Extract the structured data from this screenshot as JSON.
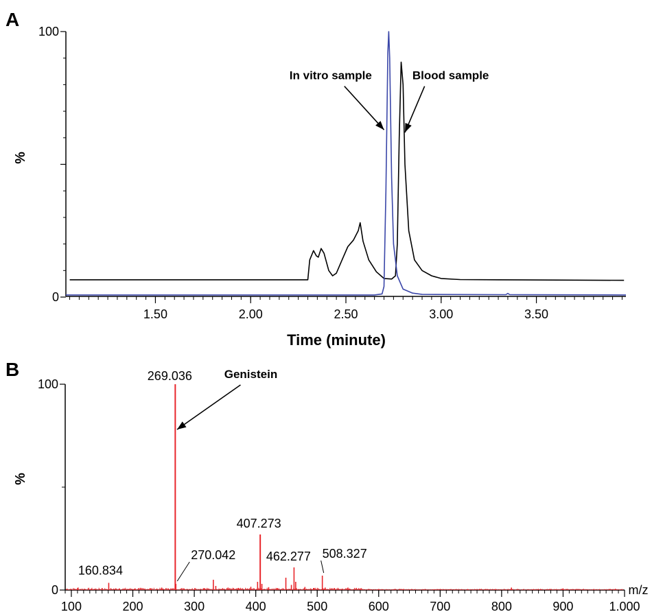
{
  "panels": {
    "a_label": "A",
    "b_label": "B"
  },
  "chart_data": [
    {
      "id": "chromatogram",
      "type": "line",
      "title": "",
      "xlabel": "Time (minute)",
      "ylabel": "%",
      "xlim": [
        1.03,
        3.97
      ],
      "ylim": [
        0,
        100
      ],
      "x_ticks": [
        1.5,
        2.0,
        2.5,
        3.0,
        3.5
      ],
      "x_tick_labels": [
        "1.50",
        "2.00",
        "2.50",
        "3.00",
        "3.50"
      ],
      "y_ticks": [
        0,
        50,
        100
      ],
      "y_tick_labels": [
        "0",
        "",
        "100"
      ],
      "grid": false,
      "legend": "none",
      "series": [
        {
          "name": "Blood sample",
          "color": "#000000",
          "points": [
            [
              1.05,
              6.5
            ],
            [
              2.3,
              6.5
            ],
            [
              2.31,
              14.0
            ],
            [
              2.33,
              17.5
            ],
            [
              2.345,
              15.5
            ],
            [
              2.355,
              15.0
            ],
            [
              2.37,
              18.3
            ],
            [
              2.385,
              16.5
            ],
            [
              2.41,
              10.0
            ],
            [
              2.43,
              8.0
            ],
            [
              2.45,
              9.0
            ],
            [
              2.48,
              14.0
            ],
            [
              2.51,
              19.0
            ],
            [
              2.54,
              21.5
            ],
            [
              2.565,
              25.0
            ],
            [
              2.575,
              28.0
            ],
            [
              2.59,
              21.0
            ],
            [
              2.62,
              14.0
            ],
            [
              2.66,
              9.5
            ],
            [
              2.7,
              7.0
            ],
            [
              2.74,
              6.8
            ],
            [
              2.76,
              8.0
            ],
            [
              2.77,
              20.0
            ],
            [
              2.78,
              60.0
            ],
            [
              2.79,
              88.5
            ],
            [
              2.8,
              80.0
            ],
            [
              2.81,
              50.0
            ],
            [
              2.83,
              25.0
            ],
            [
              2.86,
              14.0
            ],
            [
              2.9,
              10.0
            ],
            [
              2.95,
              8.0
            ],
            [
              3.0,
              7.0
            ],
            [
              3.1,
              6.6
            ],
            [
              3.3,
              6.5
            ],
            [
              3.96,
              6.3
            ]
          ]
        },
        {
          "name": "In vitro sample",
          "color": "#3a46a8",
          "points": [
            [
              1.03,
              0.8
            ],
            [
              2.65,
              0.8
            ],
            [
              2.69,
              1.2
            ],
            [
              2.7,
              4.0
            ],
            [
              2.71,
              40.0
            ],
            [
              2.72,
              92.0
            ],
            [
              2.725,
              100.0
            ],
            [
              2.73,
              90.0
            ],
            [
              2.74,
              45.0
            ],
            [
              2.75,
              20.0
            ],
            [
              2.77,
              8.0
            ],
            [
              2.8,
              3.0
            ],
            [
              2.85,
              1.5
            ],
            [
              2.9,
              1.0
            ],
            [
              3.34,
              0.9
            ],
            [
              3.35,
              1.4
            ],
            [
              3.36,
              0.9
            ],
            [
              3.97,
              0.8
            ]
          ]
        }
      ],
      "annotations": [
        {
          "text": "In vitro sample",
          "x": 2.42,
          "y": 82,
          "arrow_to": [
            2.7,
            63
          ]
        },
        {
          "text": "Blood sample",
          "x": 3.05,
          "y": 82,
          "arrow_to": [
            2.81,
            62
          ]
        }
      ]
    },
    {
      "id": "mass_spectrum",
      "type": "bar",
      "title": "",
      "xlabel": "m/z",
      "ylabel": "%",
      "xlim": [
        90,
        1000
      ],
      "ylim": [
        0,
        100
      ],
      "x_ticks": [
        100,
        200,
        300,
        400,
        500,
        600,
        700,
        800,
        900,
        1000
      ],
      "x_tick_labels": [
        "100",
        "200",
        "300",
        "400",
        "500",
        "600",
        "700",
        "800",
        "900",
        "1.000"
      ],
      "y_ticks": [
        0,
        100
      ],
      "y_tick_labels": [
        "0",
        "100"
      ],
      "grid": false,
      "legend": "none",
      "color": "#e8262b",
      "peaks": [
        {
          "mz": 111,
          "intensity": 1.2
        },
        {
          "mz": 132,
          "intensity": 0.6
        },
        {
          "mz": 150,
          "intensity": 1.0
        },
        {
          "mz": 160.834,
          "intensity": 3.5,
          "label": "160.834"
        },
        {
          "mz": 178,
          "intensity": 0.8
        },
        {
          "mz": 203,
          "intensity": 0.7
        },
        {
          "mz": 228,
          "intensity": 0.9
        },
        {
          "mz": 247,
          "intensity": 1.2
        },
        {
          "mz": 258,
          "intensity": 0.8
        },
        {
          "mz": 269.036,
          "intensity": 100,
          "label": "269.036"
        },
        {
          "mz": 270.042,
          "intensity": 3.0,
          "label": "270.042"
        },
        {
          "mz": 283,
          "intensity": 0.8
        },
        {
          "mz": 301,
          "intensity": 1.0
        },
        {
          "mz": 316,
          "intensity": 0.9
        },
        {
          "mz": 331,
          "intensity": 5.0
        },
        {
          "mz": 335,
          "intensity": 2.0
        },
        {
          "mz": 355,
          "intensity": 1.2
        },
        {
          "mz": 372,
          "intensity": 1.0
        },
        {
          "mz": 392,
          "intensity": 1.6
        },
        {
          "mz": 403,
          "intensity": 4.0
        },
        {
          "mz": 407.273,
          "intensity": 27.0,
          "label": "407.273"
        },
        {
          "mz": 410,
          "intensity": 3.0
        },
        {
          "mz": 421,
          "intensity": 1.4
        },
        {
          "mz": 435,
          "intensity": 1.0
        },
        {
          "mz": 449,
          "intensity": 6.0
        },
        {
          "mz": 458,
          "intensity": 2.5
        },
        {
          "mz": 462.277,
          "intensity": 11.0,
          "label": "462.277"
        },
        {
          "mz": 465,
          "intensity": 4.0
        },
        {
          "mz": 480,
          "intensity": 1.5
        },
        {
          "mz": 494,
          "intensity": 1.0
        },
        {
          "mz": 508.327,
          "intensity": 7.0,
          "label": "508.327"
        },
        {
          "mz": 513,
          "intensity": 1.2
        },
        {
          "mz": 528,
          "intensity": 1.0
        },
        {
          "mz": 550,
          "intensity": 1.2
        },
        {
          "mz": 570,
          "intensity": 0.8
        },
        {
          "mz": 600,
          "intensity": 0.5
        },
        {
          "mz": 640,
          "intensity": 0.4
        },
        {
          "mz": 690,
          "intensity": 0.4
        },
        {
          "mz": 745,
          "intensity": 0.4
        },
        {
          "mz": 790,
          "intensity": 0.5
        },
        {
          "mz": 816,
          "intensity": 1.2
        },
        {
          "mz": 852,
          "intensity": 0.5
        },
        {
          "mz": 900,
          "intensity": 0.8
        },
        {
          "mz": 950,
          "intensity": 0.5
        },
        {
          "mz": 985,
          "intensity": 0.6
        }
      ],
      "annotations": [
        {
          "text": "Genistein",
          "x": 392,
          "y": 103,
          "arrow_to": [
            272,
            78
          ]
        }
      ]
    }
  ]
}
